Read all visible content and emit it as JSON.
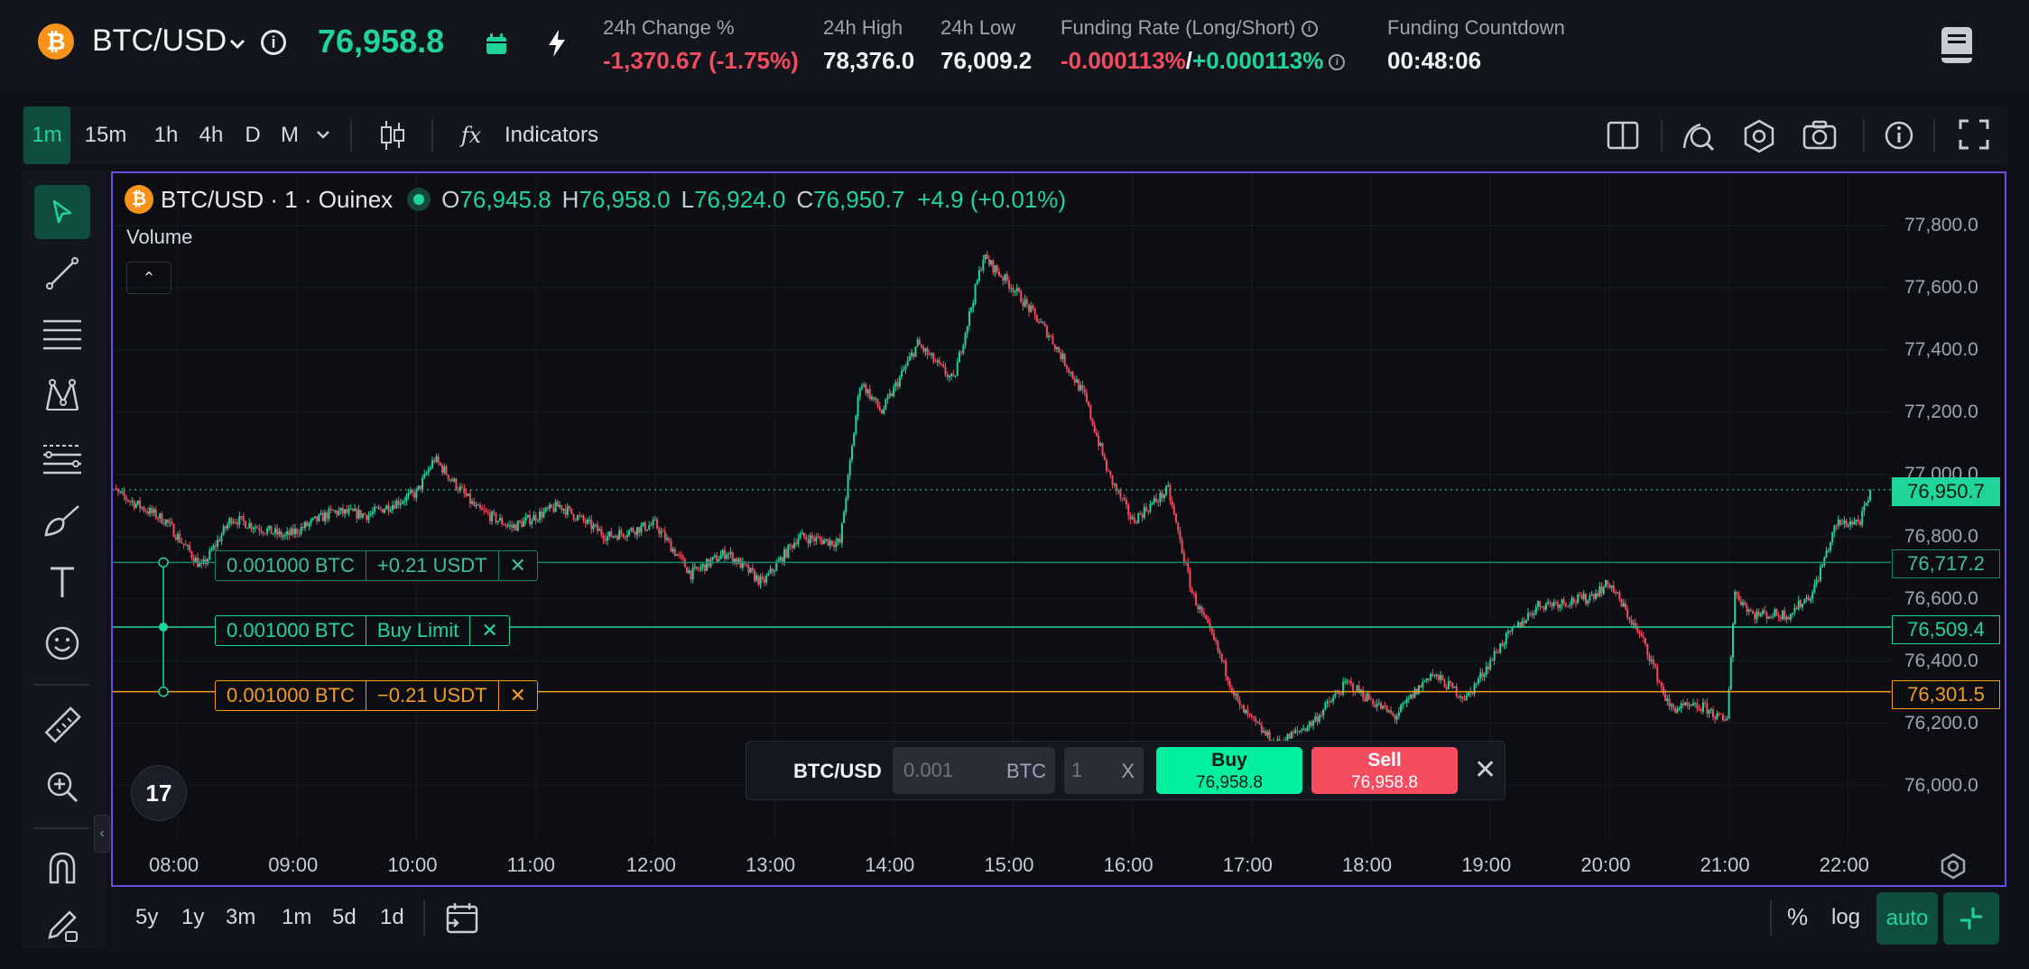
{
  "header": {
    "coin_glyph": "₿",
    "symbol": "BTC/USD",
    "last_price": "76,958.8",
    "stats": [
      {
        "label": "24h Change %",
        "value": "-1,370.67 (-1.75%)"
      },
      {
        "label": "24h High",
        "value": "78,376.0"
      },
      {
        "label": "24h Low",
        "value": "76,009.2"
      },
      {
        "label": "Funding Rate (Long/Short)",
        "value_short": "-0.000113%",
        "separator": "/",
        "value_long": "+0.000113%"
      },
      {
        "label": "Funding Countdown",
        "value": "00:48:06"
      }
    ]
  },
  "toolbar": {
    "timeframes": [
      "1m",
      "15m",
      "1h",
      "4h",
      "D",
      "M"
    ],
    "active_timeframe": "1m",
    "indicators_label": "Indicators",
    "fx_glyph": "fx"
  },
  "legend": {
    "title": "BTC/USD · 1 · Ouinex",
    "o_label": "O",
    "o": "76,945.8",
    "h_label": "H",
    "h": "76,958.0",
    "l_label": "L",
    "l": "76,924.0",
    "c_label": "C",
    "c": "76,950.7",
    "change": "+4.9 (+0.01%)",
    "volume_label": "Volume",
    "toggle_glyph": "⌃"
  },
  "orders": [
    {
      "qty": "0.001000 BTC",
      "text": "+0.21 USDT",
      "close": "✕",
      "price": "76,717.2"
    },
    {
      "qty": "0.001000 BTC",
      "text": "Buy Limit",
      "close": "✕",
      "price": "76,509.4"
    },
    {
      "qty": "0.001000 BTC",
      "text": "−0.21 USDT",
      "close": "✕",
      "price": "76,301.5"
    }
  ],
  "current_price_tag": "76,950.7",
  "trade_widget": {
    "symbol": "BTC/USD",
    "qty_placeholder": "0.001",
    "qty_unit": "BTC",
    "leverage_placeholder": "1",
    "leverage_unit": "X",
    "buy_label": "Buy",
    "buy_price": "76,958.8",
    "sell_label": "Sell",
    "sell_price": "76,958.8",
    "close_glyph": "✕"
  },
  "tv_logo": "17",
  "collapse_glyph": "‹",
  "bottom": {
    "ranges": [
      "5y",
      "1y",
      "3m",
      "1m",
      "5d",
      "1d"
    ],
    "percent_label": "%",
    "log_label": "log",
    "auto_label": "auto"
  },
  "colors": {
    "up": "#1fd59a",
    "down": "#f34b5f",
    "accent": "#6d4cdb",
    "orange": "#f39c1f"
  },
  "chart_data": {
    "type": "candlestick",
    "interval": "1m",
    "y_ticks": [
      "77,800.0",
      "77,600.0",
      "77,400.0",
      "77,200.0",
      "77,000.0",
      "76,800.0",
      "76,600.0",
      "76,400.0",
      "76,200.0",
      "76,000.0"
    ],
    "x_ticks": [
      "08:00",
      "09:00",
      "10:00",
      "11:00",
      "12:00",
      "13:00",
      "14:00",
      "15:00",
      "16:00",
      "17:00",
      "18:00",
      "19:00",
      "20:00",
      "21:00",
      "22:00"
    ],
    "ylim": [
      75940,
      77870
    ],
    "path_time": [
      7.4,
      7.9,
      8.2,
      8.45,
      8.9,
      9.3,
      9.6,
      10.0,
      10.15,
      10.5,
      10.8,
      11.2,
      11.6,
      12.0,
      12.3,
      12.6,
      12.9,
      13.2,
      13.55,
      13.72,
      13.9,
      14.2,
      14.5,
      14.75,
      15.0,
      15.3,
      15.6,
      15.8,
      16.0,
      16.3,
      16.5,
      16.7,
      16.9,
      17.2,
      17.5,
      17.8,
      18.2,
      18.5,
      18.8,
      19.1,
      19.4,
      19.8,
      20.0,
      20.3,
      20.5,
      20.8,
      20.98,
      21.05,
      21.2,
      21.5,
      21.7,
      21.9,
      22.1,
      22.2
    ],
    "path_price": [
      76960,
      76850,
      76700,
      76860,
      76800,
      76880,
      76870,
      76940,
      77050,
      76890,
      76830,
      76900,
      76800,
      76840,
      76680,
      76750,
      76650,
      76800,
      76780,
      77300,
      77200,
      77420,
      77300,
      77700,
      77600,
      77450,
      77250,
      77000,
      76850,
      76950,
      76620,
      76450,
      76250,
      76130,
      76200,
      76330,
      76220,
      76360,
      76280,
      76460,
      76580,
      76600,
      76650,
      76450,
      76250,
      76250,
      76200,
      76620,
      76550,
      76550,
      76620,
      76840,
      76850,
      76950
    ]
  }
}
